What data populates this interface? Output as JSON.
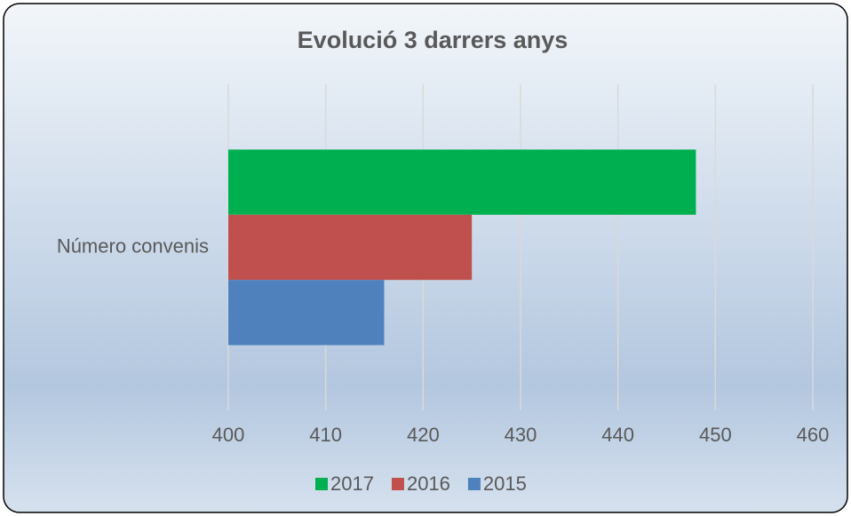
{
  "chart_data": {
    "type": "bar",
    "orientation": "horizontal",
    "title": "Evolució 3 darrers anys",
    "categories": [
      "Número convenis"
    ],
    "series": [
      {
        "name": "2017",
        "color": "#00b050",
        "values": [
          448
        ]
      },
      {
        "name": "2016",
        "color": "#c0504d",
        "values": [
          425
        ]
      },
      {
        "name": "2015",
        "color": "#4f81bd",
        "values": [
          416
        ]
      }
    ],
    "xlim": [
      400,
      460
    ],
    "xticks": [
      400,
      410,
      420,
      430,
      440,
      450,
      460
    ],
    "grid": true,
    "legend": "bottom"
  }
}
